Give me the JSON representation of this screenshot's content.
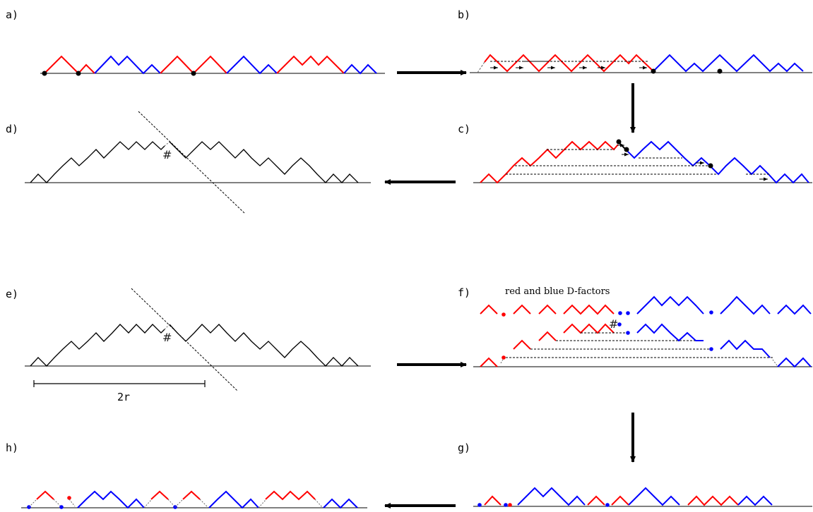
{
  "panels": {
    "a": {
      "label": "a)"
    },
    "b": {
      "label": "b)"
    },
    "c": {
      "label": "c)"
    },
    "d": {
      "label": "d)"
    },
    "e": {
      "label": "e)"
    },
    "f": {
      "label": "f)",
      "caption": "red and blue D-factors"
    },
    "g": {
      "label": "g)"
    },
    "h": {
      "label": "h)"
    }
  },
  "marks": {
    "hash": "#",
    "length": "2r"
  },
  "colors": {
    "red": "#ff0000",
    "blue": "#0000ff",
    "black": "#000000"
  }
}
